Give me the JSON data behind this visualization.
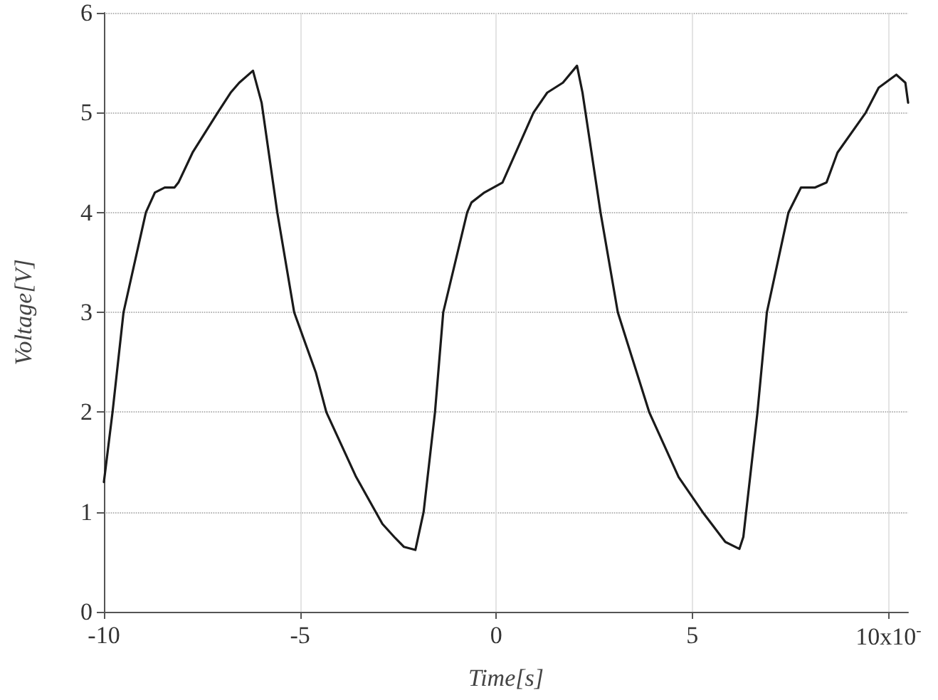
{
  "chart_data": {
    "type": "line",
    "xlabel": "Time[s]",
    "ylabel": "Voltage[V]",
    "xlim": [
      -10,
      10.5
    ],
    "xticks": [
      -10,
      -5,
      0,
      5,
      {
        "value": 10,
        "label": "10x10$^{-}$"
      }
    ],
    "ylim": [
      0,
      6
    ],
    "yticks": [
      0,
      1,
      2,
      3,
      4,
      5,
      6
    ],
    "grid": true,
    "marker": "none",
    "line_style": "solid",
    "x": [
      -10,
      -9.78,
      -9.5,
      -8.93,
      -8.7,
      -8.45,
      -8.2,
      -8.1,
      -7.74,
      -7.1,
      -6.77,
      -6.55,
      -6.2,
      -5.98,
      -5.58,
      -5.15,
      -4.6,
      -4.33,
      -3.57,
      -3.07,
      -2.9,
      -2.6,
      -2.35,
      -2.06,
      -1.85,
      -1.56,
      -1.35,
      -0.74,
      -0.63,
      -0.3,
      0.16,
      0.95,
      1.3,
      1.7,
      2.06,
      2.2,
      2.66,
      3.1,
      3.9,
      4.65,
      5.26,
      5.55,
      5.84,
      6.2,
      6.3,
      6.66,
      6.9,
      7.45,
      7.77,
      8.13,
      8.42,
      8.7,
      9.42,
      9.75,
      10.2,
      10.43,
      10.5
    ],
    "series": [
      {
        "color": "#1a1a1a",
        "values": [
          1.3,
          2,
          3,
          4,
          4.2,
          4.25,
          4.25,
          4.3,
          4.6,
          5,
          5.2,
          5.3,
          5.42,
          5.1,
          4,
          3,
          2.4,
          2,
          1.35,
          1,
          0.88,
          0.75,
          0.65,
          0.62,
          1,
          2,
          3,
          4,
          4.1,
          4.2,
          4.3,
          5,
          5.2,
          5.3,
          5.47,
          5.2,
          4,
          3,
          2,
          1.35,
          1,
          0.85,
          0.7,
          0.63,
          0.75,
          2,
          3,
          4,
          4.25,
          4.25,
          4.3,
          4.6,
          5,
          5.25,
          5.38,
          5.3,
          5.1
        ]
      }
    ]
  }
}
